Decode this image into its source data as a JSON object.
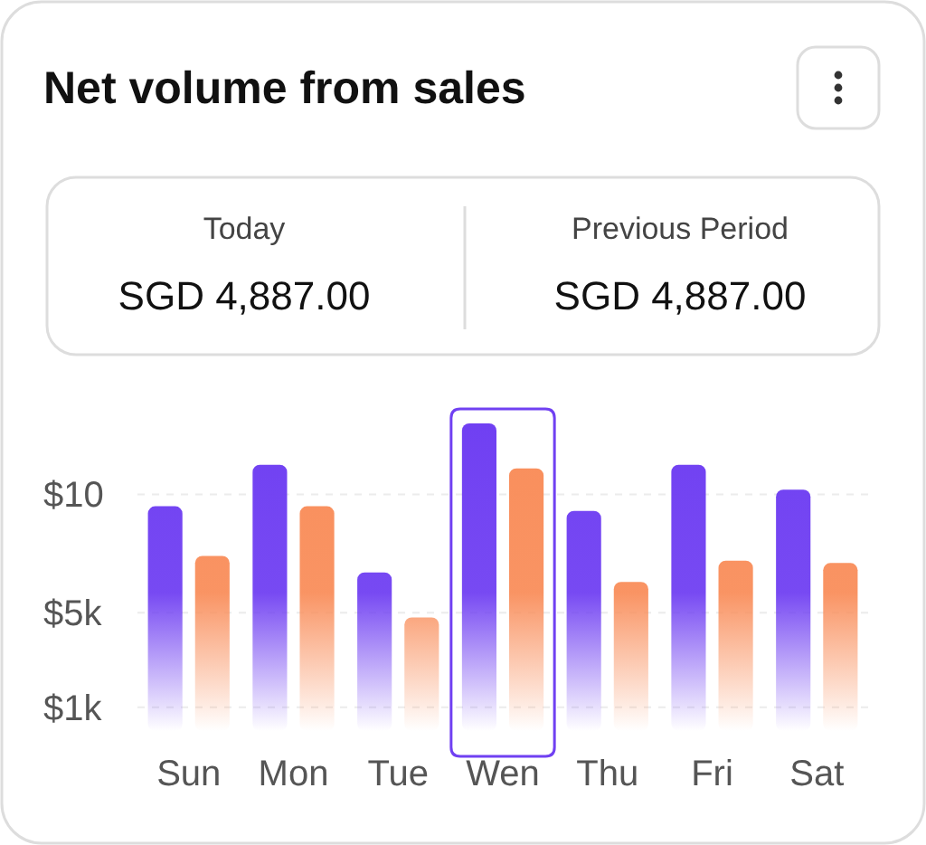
{
  "chart_data": {
    "type": "bar",
    "title": "Net volume from sales",
    "annotations": [
      "Today",
      "SGD 4,887.00",
      "Previous Period",
      "SGD 4,887.00"
    ],
    "categories": [
      "Sun",
      "Mon",
      "Tue",
      "Wen",
      "Thu",
      "Fri",
      "Sat"
    ],
    "series": [
      {
        "color": "#7040f2",
        "values": [
          9.5,
          11.25,
          6.7,
          13.0,
          9.3,
          11.25,
          10.2
        ]
      },
      {
        "color": "#f98e5b",
        "values": [
          7.4,
          9.5,
          4.8,
          11.1,
          6.3,
          7.2,
          7.1
        ]
      }
    ],
    "yticks": [
      {
        "value": 1,
        "label": "$1k"
      },
      {
        "value": 5,
        "label": "$5k"
      },
      {
        "value": 10,
        "label": "$10"
      }
    ],
    "ylim": [
      0,
      13
    ],
    "bands": [
      {
        "axis": "x",
        "from": "Wen",
        "to": "Wen",
        "color": "#7040f2"
      }
    ],
    "grid": "y"
  }
}
